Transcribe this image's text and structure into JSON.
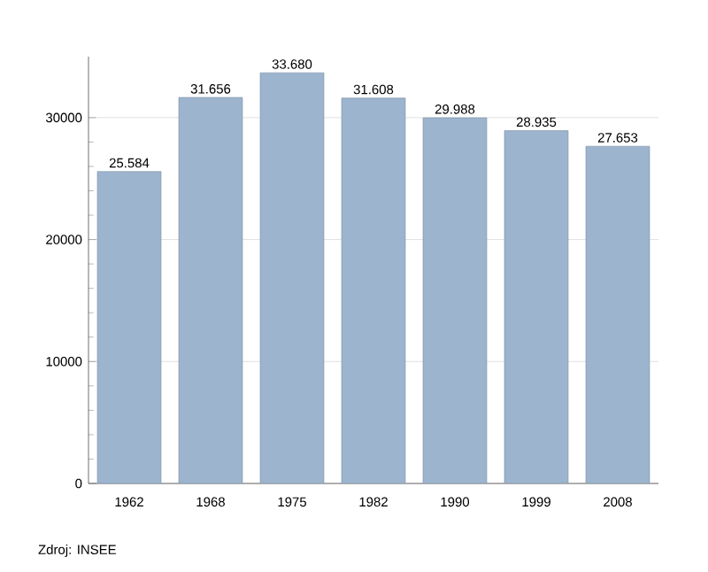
{
  "chart_data": {
    "type": "bar",
    "categories": [
      "1962",
      "1968",
      "1975",
      "1982",
      "1990",
      "1999",
      "2008"
    ],
    "values": [
      25584,
      31656,
      33680,
      31608,
      29988,
      28935,
      27653
    ],
    "value_labels": [
      "25.584",
      "31.656",
      "33.680",
      "31.608",
      "29.988",
      "28.935",
      "27.653"
    ],
    "color": "#9cb4cd",
    "ylim": [
      0,
      35000
    ],
    "yticks": [
      0,
      10000,
      20000,
      30000
    ],
    "grid": "y",
    "annotations": [
      "Zdroj: INSEE"
    ]
  }
}
